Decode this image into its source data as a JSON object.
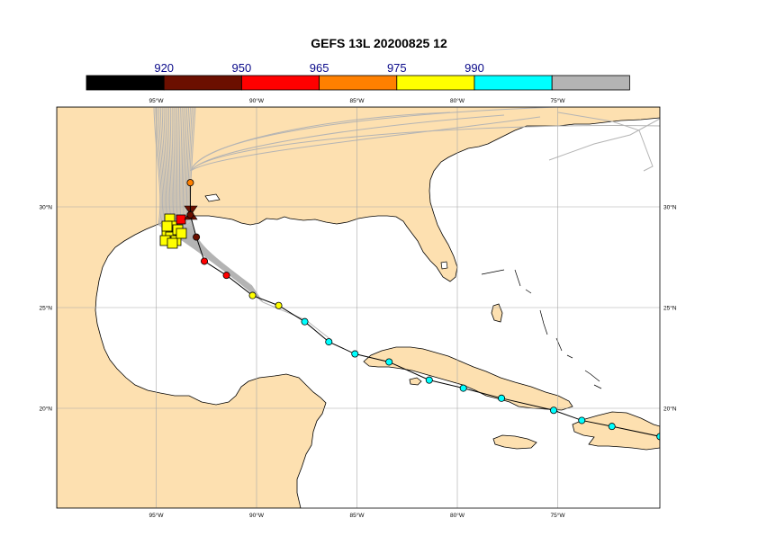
{
  "title": "GEFS 13L 20200825 12",
  "legend": {
    "thresholds": [
      "920",
      "950",
      "965",
      "975",
      "990"
    ],
    "colors": [
      "#000000",
      "#6b0f00",
      "#ff0000",
      "#ff8000",
      "#ffff00",
      "#00ffff",
      "#b4b4b4"
    ]
  },
  "map": {
    "lon_ticks": [
      "95°W",
      "90°W",
      "85°W",
      "80°W",
      "75°W"
    ],
    "lat_ticks": [
      "30°N",
      "25°N",
      "20°N"
    ],
    "land_color": "#fde0b0",
    "ocean_color": "#ffffff",
    "ensemble_color": "#b4b4b4",
    "track": [
      {
        "lon": -69.9,
        "lat": 18.6,
        "color": "cyan"
      },
      {
        "lon": -72.3,
        "lat": 19.1,
        "color": "cyan"
      },
      {
        "lon": -73.8,
        "lat": 19.4,
        "color": "cyan"
      },
      {
        "lon": -75.2,
        "lat": 19.9,
        "color": "cyan"
      },
      {
        "lon": -77.8,
        "lat": 20.5,
        "color": "cyan"
      },
      {
        "lon": -79.7,
        "lat": 21.0,
        "color": "cyan"
      },
      {
        "lon": -81.4,
        "lat": 21.4,
        "color": "cyan"
      },
      {
        "lon": -83.4,
        "lat": 22.3,
        "color": "cyan"
      },
      {
        "lon": -85.1,
        "lat": 22.7,
        "color": "cyan"
      },
      {
        "lon": -86.4,
        "lat": 23.3,
        "color": "cyan"
      },
      {
        "lon": -87.6,
        "lat": 24.3,
        "color": "cyan"
      },
      {
        "lon": -88.9,
        "lat": 25.1,
        "color": "yellow"
      },
      {
        "lon": -90.2,
        "lat": 25.6,
        "color": "yellow"
      },
      {
        "lon": -91.5,
        "lat": 26.6,
        "color": "red"
      },
      {
        "lon": -92.6,
        "lat": 27.3,
        "color": "red"
      },
      {
        "lon": -93.0,
        "lat": 28.5,
        "color": "darkred"
      },
      {
        "lon": -93.3,
        "lat": 29.6,
        "color": "darkred"
      },
      {
        "lon": -93.3,
        "lat": 31.2,
        "color": "orange"
      }
    ]
  }
}
